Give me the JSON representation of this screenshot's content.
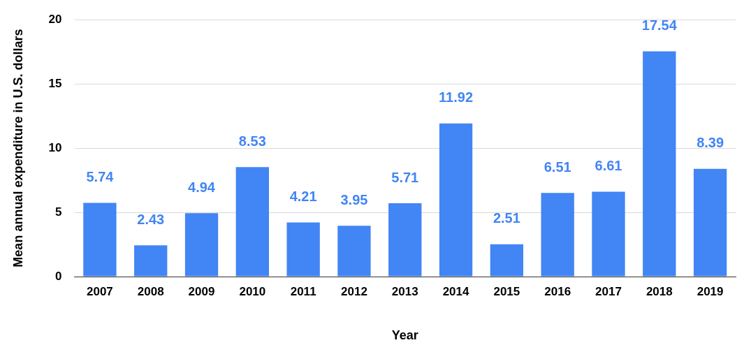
{
  "chart_data": {
    "type": "bar",
    "x_label": "Year",
    "y_label": "Mean annual expenditure in U.S. dollars",
    "categories": [
      "2007",
      "2008",
      "2009",
      "2010",
      "2011",
      "2012",
      "2013",
      "2014",
      "2015",
      "2016",
      "2017",
      "2018",
      "2019"
    ],
    "values": [
      5.74,
      2.43,
      4.94,
      8.53,
      4.21,
      3.95,
      5.71,
      11.92,
      2.51,
      6.51,
      6.61,
      17.54,
      8.39
    ],
    "color": "#4285f4",
    "ylim": [
      0,
      20
    ],
    "yticks": [
      0,
      5,
      10,
      15,
      20
    ],
    "grid": true,
    "data_labels": true
  }
}
